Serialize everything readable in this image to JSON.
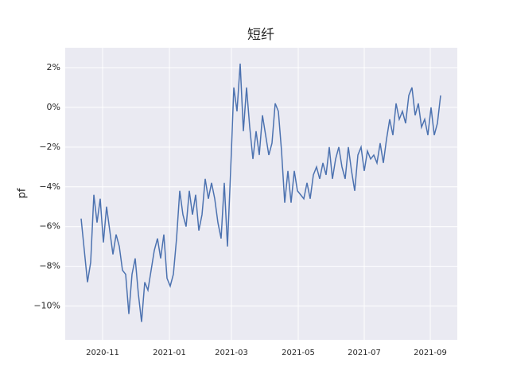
{
  "chart_data": {
    "type": "line",
    "title": "短纤",
    "ylabel": "pf",
    "color": "#4c72b0",
    "grid": true,
    "values": [
      -5.6,
      -7.2,
      -8.8,
      -7.8,
      -4.4,
      -5.8,
      -4.6,
      -6.8,
      -5.0,
      -6.2,
      -7.4,
      -6.4,
      -7.0,
      -8.2,
      -8.4,
      -10.4,
      -8.4,
      -7.6,
      -9.4,
      -10.8,
      -8.8,
      -9.2,
      -8.2,
      -7.2,
      -6.6,
      -7.6,
      -6.4,
      -8.6,
      -9.0,
      -8.4,
      -6.6,
      -4.2,
      -5.4,
      -6.0,
      -4.2,
      -5.4,
      -4.4,
      -6.2,
      -5.4,
      -3.6,
      -4.6,
      -3.8,
      -4.6,
      -5.8,
      -6.6,
      -3.8,
      -7.0,
      -3.2,
      1.0,
      -0.2,
      2.2,
      -1.2,
      1.0,
      -1.0,
      -2.6,
      -1.2,
      -2.4,
      -0.4,
      -1.4,
      -2.4,
      -1.8,
      0.2,
      -0.2,
      -2.2,
      -4.8,
      -3.2,
      -4.8,
      -3.2,
      -4.2,
      -4.4,
      -4.6,
      -3.8,
      -4.6,
      -3.4,
      -3.0,
      -3.6,
      -2.8,
      -3.4,
      -2.0,
      -3.6,
      -2.6,
      -2.0,
      -3.0,
      -3.6,
      -2.0,
      -3.2,
      -4.2,
      -2.4,
      -2.0,
      -3.2,
      -2.2,
      -2.6,
      -2.4,
      -2.8,
      -1.8,
      -2.8,
      -1.6,
      -0.6,
      -1.4,
      0.2,
      -0.6,
      -0.2,
      -0.8,
      0.6,
      1.0,
      -0.4,
      0.2,
      -1.0,
      -0.6,
      -1.4,
      0.0,
      -1.4,
      -0.8,
      0.6
    ],
    "xlim": [
      -5,
      118.25
    ],
    "xticks": [
      {
        "value": 6.75,
        "label": "2020-11"
      },
      {
        "value": 27.75,
        "label": "2021-01"
      },
      {
        "value": 47.25,
        "label": "2021-03"
      },
      {
        "value": 68.25,
        "label": "2021-05"
      },
      {
        "value": 89,
        "label": "2021-07"
      },
      {
        "value": 109.75,
        "label": "2021-09"
      }
    ],
    "ylim": [
      -11.7,
      3.0
    ],
    "yticks": [
      {
        "value": 2,
        "label": "2%"
      },
      {
        "value": 0,
        "label": "0%"
      },
      {
        "value": -2,
        "label": "−2%"
      },
      {
        "value": -4,
        "label": "−4%"
      },
      {
        "value": -6,
        "label": "−6%"
      },
      {
        "value": -8,
        "label": "−8%"
      },
      {
        "value": -10,
        "label": "−10%"
      }
    ]
  }
}
